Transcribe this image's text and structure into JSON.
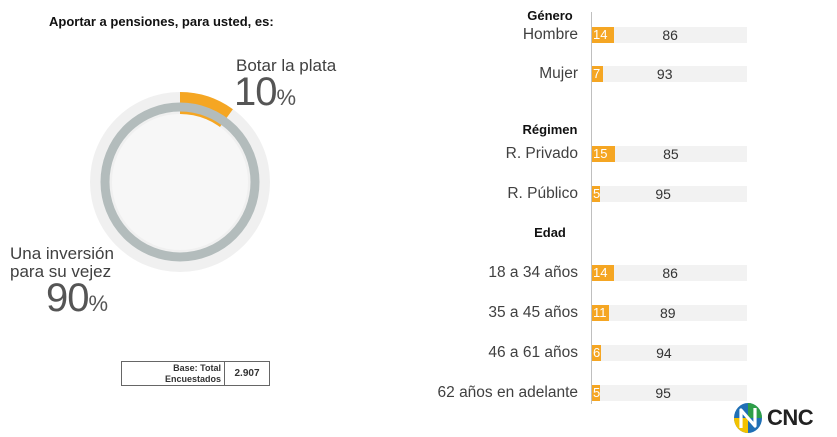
{
  "title": "Aportar a pensiones, para usted, es:",
  "colors": {
    "accent": "#f5a623",
    "track": "#f2f2f2",
    "ring": "#b3bcbc",
    "ring_bg": "#f0f0f0"
  },
  "donut": {
    "slices": [
      {
        "label": "Botar la plata",
        "value": 10,
        "display": "10",
        "pct": "%"
      },
      {
        "label_line1": "Una inversión",
        "label_line2": "para su vejez",
        "value": 90,
        "display": "90",
        "pct": "%"
      }
    ]
  },
  "base": {
    "label_line1": "Base: Total",
    "label_line2": "Encuestados",
    "value": "2.907"
  },
  "chart_data": {
    "type": "bar",
    "stacked": true,
    "orientation": "horizontal",
    "groups": [
      {
        "title": "Género",
        "categories": [
          {
            "label": "Hombre",
            "values": [
              14,
              86
            ]
          },
          {
            "label": "Mujer",
            "values": [
              7,
              93
            ]
          }
        ]
      },
      {
        "title": "Régimen",
        "categories": [
          {
            "label": "R. Privado",
            "values": [
              15,
              85
            ]
          },
          {
            "label": "R. Público",
            "values": [
              5,
              95
            ]
          }
        ]
      },
      {
        "title": "Edad",
        "categories": [
          {
            "label": "18 a 34 años",
            "values": [
              14,
              86
            ]
          },
          {
            "label": "35 a 45 años",
            "values": [
              11,
              89
            ]
          },
          {
            "label": "46 a 61 años",
            "values": [
              6,
              94
            ]
          },
          {
            "label": "62 años en adelante",
            "values": [
              5,
              95
            ]
          }
        ]
      }
    ],
    "xlim": [
      0,
      100
    ]
  },
  "logo": {
    "text": "CNC",
    "icon": "cnc-logo-icon"
  }
}
